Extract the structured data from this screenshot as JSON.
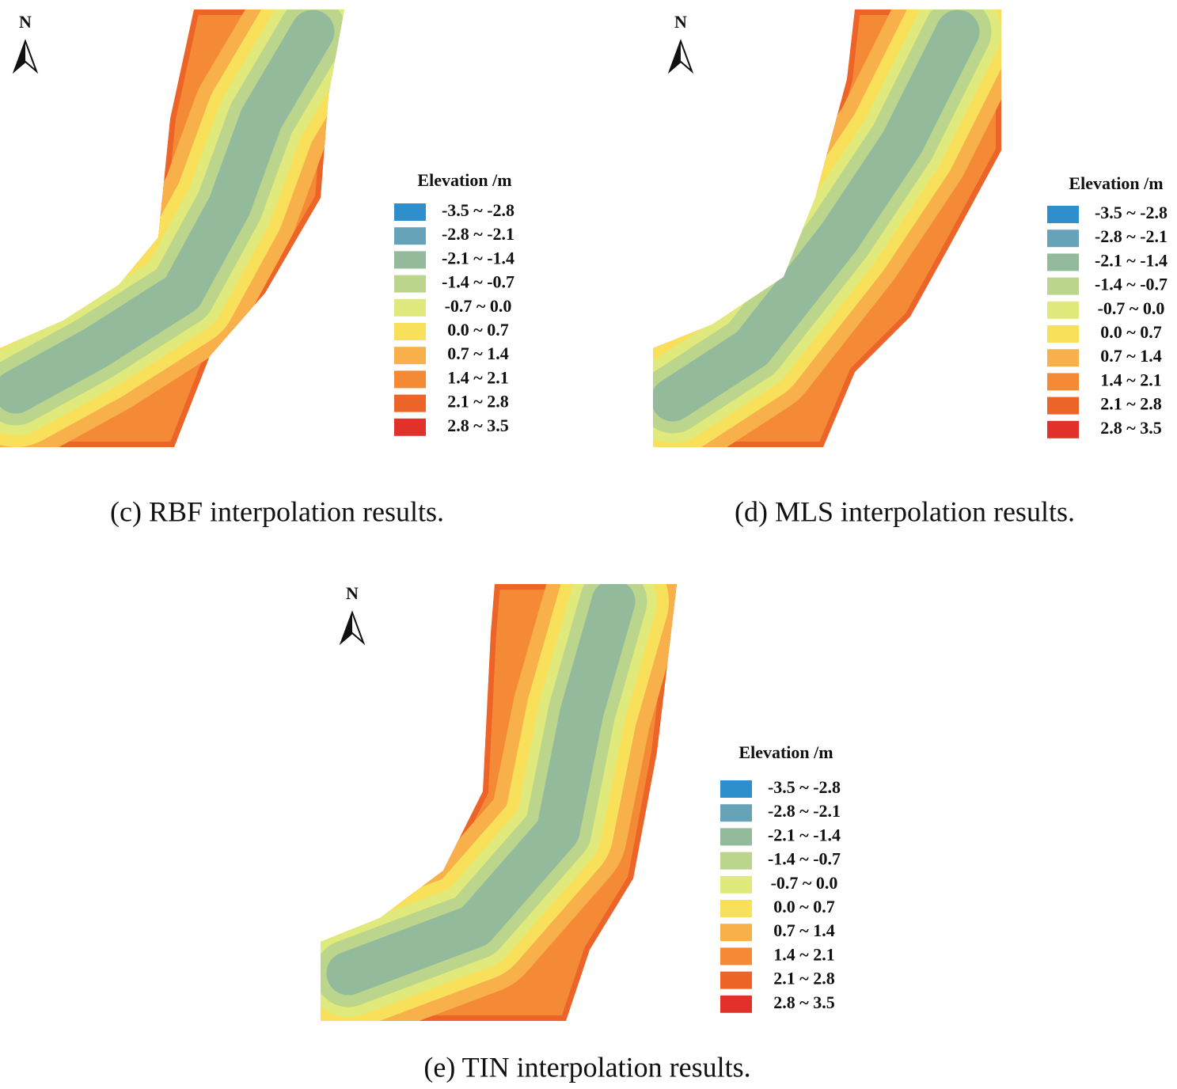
{
  "panels": [
    {
      "north": "N",
      "legend": {
        "title": "Elevation /m",
        "items": [
          {
            "label": "-3.5 ~ -2.8",
            "color": "#2f8fcc"
          },
          {
            "label": "-2.8 ~ -2.1",
            "color": "#67a3b8"
          },
          {
            "label": "-2.1 ~ -1.4",
            "color": "#93bb9b"
          },
          {
            "label": "-1.4 ~ -0.7",
            "color": "#bcd58d"
          },
          {
            "label": "-0.7 ~ 0.0",
            "color": "#e0ea7c"
          },
          {
            "label": "0.0 ~ 0.7",
            "color": "#f8e05a"
          },
          {
            "label": "0.7 ~ 1.4",
            "color": "#f8b04a"
          },
          {
            "label": "1.4 ~ 2.1",
            "color": "#f48a36"
          },
          {
            "label": "2.1 ~ 2.8",
            "color": "#ec6428"
          },
          {
            "label": "2.8 ~ 3.5",
            "color": "#e2302a"
          }
        ]
      },
      "caption": "(c) RBF interpolation results."
    },
    {
      "north": "N",
      "legend": {
        "title": "Elevation /m",
        "items": [
          {
            "label": "-3.5 ~ -2.8",
            "color": "#2f8fcc"
          },
          {
            "label": "-2.8 ~ -2.1",
            "color": "#67a3b8"
          },
          {
            "label": "-2.1 ~ -1.4",
            "color": "#93bb9b"
          },
          {
            "label": "-1.4 ~ -0.7",
            "color": "#bcd58d"
          },
          {
            "label": "-0.7 ~ 0.0",
            "color": "#e0ea7c"
          },
          {
            "label": "0.0 ~ 0.7",
            "color": "#f8e05a"
          },
          {
            "label": "0.7 ~ 1.4",
            "color": "#f8b04a"
          },
          {
            "label": "1.4 ~ 2.1",
            "color": "#f48a36"
          },
          {
            "label": "2.1 ~ 2.8",
            "color": "#ec6428"
          },
          {
            "label": "2.8 ~ 3.5",
            "color": "#e2302a"
          }
        ]
      },
      "caption": "(d) MLS interpolation results."
    },
    {
      "north": "N",
      "legend": {
        "title": "Elevation /m",
        "items": [
          {
            "label": "-3.5 ~ -2.8",
            "color": "#2f8fcc"
          },
          {
            "label": "-2.8 ~ -2.1",
            "color": "#67a3b8"
          },
          {
            "label": "-2.1 ~ -1.4",
            "color": "#93bb9b"
          },
          {
            "label": "-1.4 ~ -0.7",
            "color": "#bcd58d"
          },
          {
            "label": "-0.7 ~ 0.0",
            "color": "#e0ea7c"
          },
          {
            "label": "0.0 ~ 0.7",
            "color": "#f8e05a"
          },
          {
            "label": "0.7 ~ 1.4",
            "color": "#f8b04a"
          },
          {
            "label": "1.4 ~ 2.1",
            "color": "#f48a36"
          },
          {
            "label": "2.1 ~ 2.8",
            "color": "#ec6428"
          },
          {
            "label": "2.8 ~ 3.5",
            "color": "#e2302a"
          }
        ]
      },
      "caption": "(e) TIN interpolation results."
    }
  ]
}
